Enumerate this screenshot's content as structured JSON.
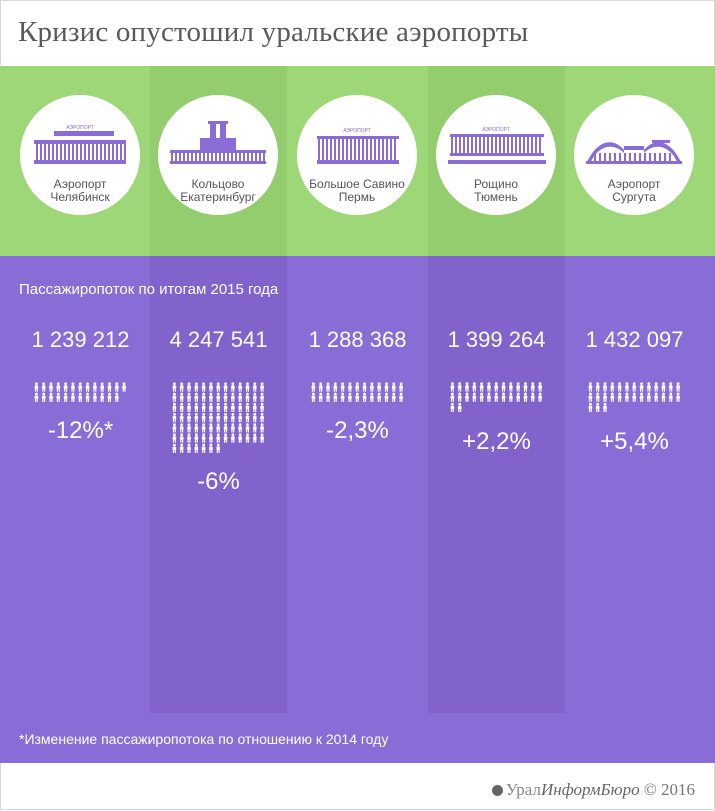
{
  "title": "Кризис опустошил уральские аэропорты",
  "subtitle": "Пассажиропоток по итогам 2015 года",
  "footnote": "*Изменение пассажиропотока по отношению к  2014 году",
  "brand": {
    "part1": "Урал",
    "part2": "ИнформБюро",
    "copyright": "© 2016"
  },
  "colors": {
    "green": "#9ed778",
    "purple": "#8a6cd6",
    "building": "#8a6cd6",
    "text_dark": "#5a5a5a"
  },
  "airports": [
    {
      "name1": "Аэропорт",
      "name2": "Челябинск",
      "value_label": "1 239 212",
      "change_label": "-12%*"
    },
    {
      "name1": "Кольцово",
      "name2": "Екатеринбург",
      "value_label": "4 247 541",
      "change_label": "-6%"
    },
    {
      "name1": "Большое Савино",
      "name2": "Пермь",
      "value_label": "1 288 368",
      "change_label": "-2,3%"
    },
    {
      "name1": "Рощино",
      "name2": "Тюмень",
      "value_label": "1 399 264",
      "change_label": "+2,2%"
    },
    {
      "name1": "Аэропорт",
      "name2": "Сургута",
      "value_label": "1 432 097",
      "change_label": "+5,4%"
    }
  ],
  "building_sign": "АЭРОПОРТ",
  "chart_data": {
    "type": "bar",
    "title": "Кризис опустошил уральские аэропорты",
    "subtitle": "Пассажиропоток по итогам 2015 года",
    "categories": [
      "Аэропорт Челябинск",
      "Кольцово Екатеринбург",
      "Большое Савино Пермь",
      "Рощино Тюмень",
      "Аэропорт Сургута"
    ],
    "values": [
      1239212,
      4247541,
      1288368,
      1399264,
      1432097
    ],
    "change_percent": [
      -12,
      -6,
      -2.3,
      2.2,
      5.4
    ],
    "unit": "passengers",
    "note": "*Изменение пассажиропотока по отношению к  2014 году"
  }
}
